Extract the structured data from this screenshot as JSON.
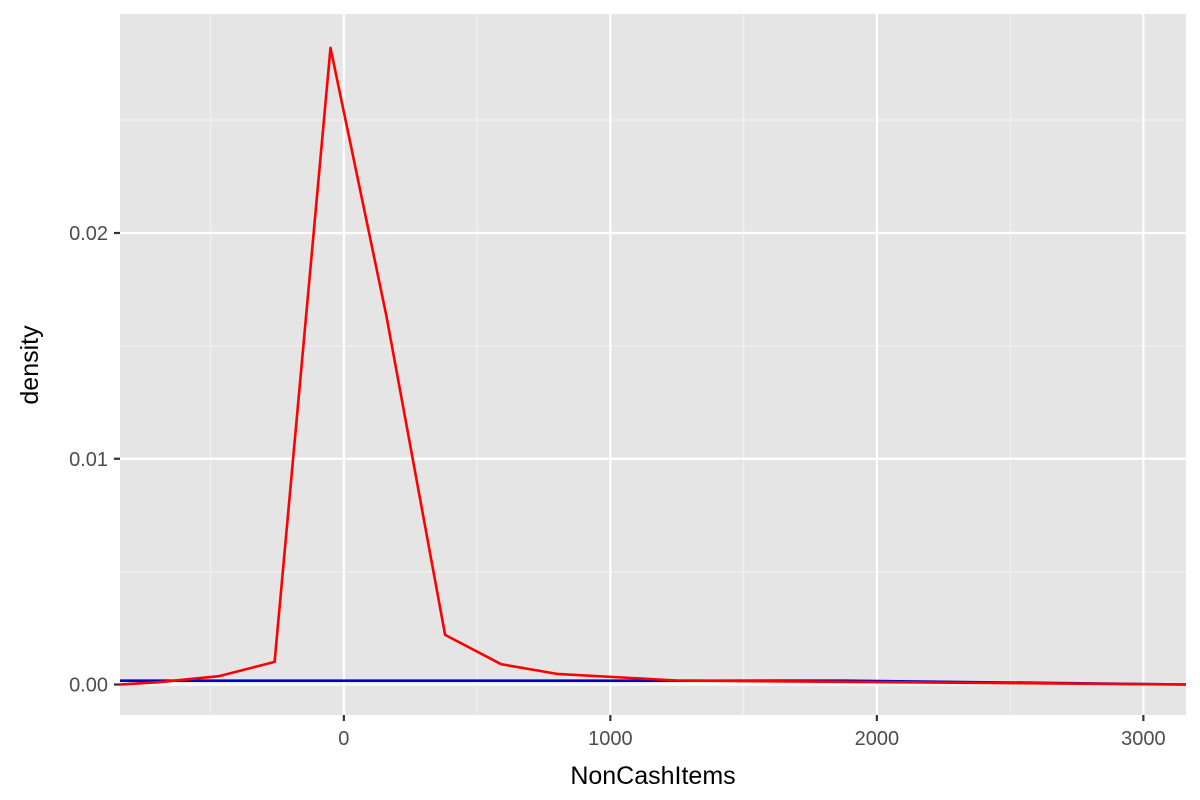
{
  "chart_data": {
    "type": "line",
    "title": "",
    "xlabel": "NonCashItems",
    "ylabel": "density",
    "xlim": [
      -840,
      3160
    ],
    "ylim": [
      -0.00135,
      0.0297
    ],
    "x_ticks": [
      0,
      1000,
      2000,
      3000
    ],
    "x_tick_labels": [
      "0",
      "1000",
      "2000",
      "3000"
    ],
    "y_ticks": [
      0.0,
      0.01,
      0.02
    ],
    "y_tick_labels": [
      "0.00",
      "0.01",
      "0.02"
    ],
    "x_minor_ticks": [
      -500,
      500,
      1500,
      2500
    ],
    "y_minor_ticks": [
      0.005,
      0.015,
      0.025
    ],
    "grid": true,
    "legend": "none",
    "series": [
      {
        "color": "#0000cc",
        "x": [
          -840,
          1880,
          3160
        ],
        "y": [
          0.00017,
          0.00017,
          0.0
        ]
      },
      {
        "color": "#ff0000",
        "x": [
          -840,
          -700,
          -470,
          -260,
          -50,
          160,
          380,
          590,
          800,
          1250,
          3160
        ],
        "y": [
          0.0,
          0.0001,
          0.00037,
          0.001,
          0.0282,
          0.0163,
          0.0022,
          0.0009,
          0.00047,
          0.00018,
          0.0
        ]
      }
    ],
    "colors": {
      "panel_background": "#e5e5e5",
      "grid_major": "#ffffff",
      "grid_minor": "#f2f2f2",
      "tick_mark": "#333333",
      "tick_label": "#4d4d4d",
      "axis_title": "#000000"
    }
  }
}
